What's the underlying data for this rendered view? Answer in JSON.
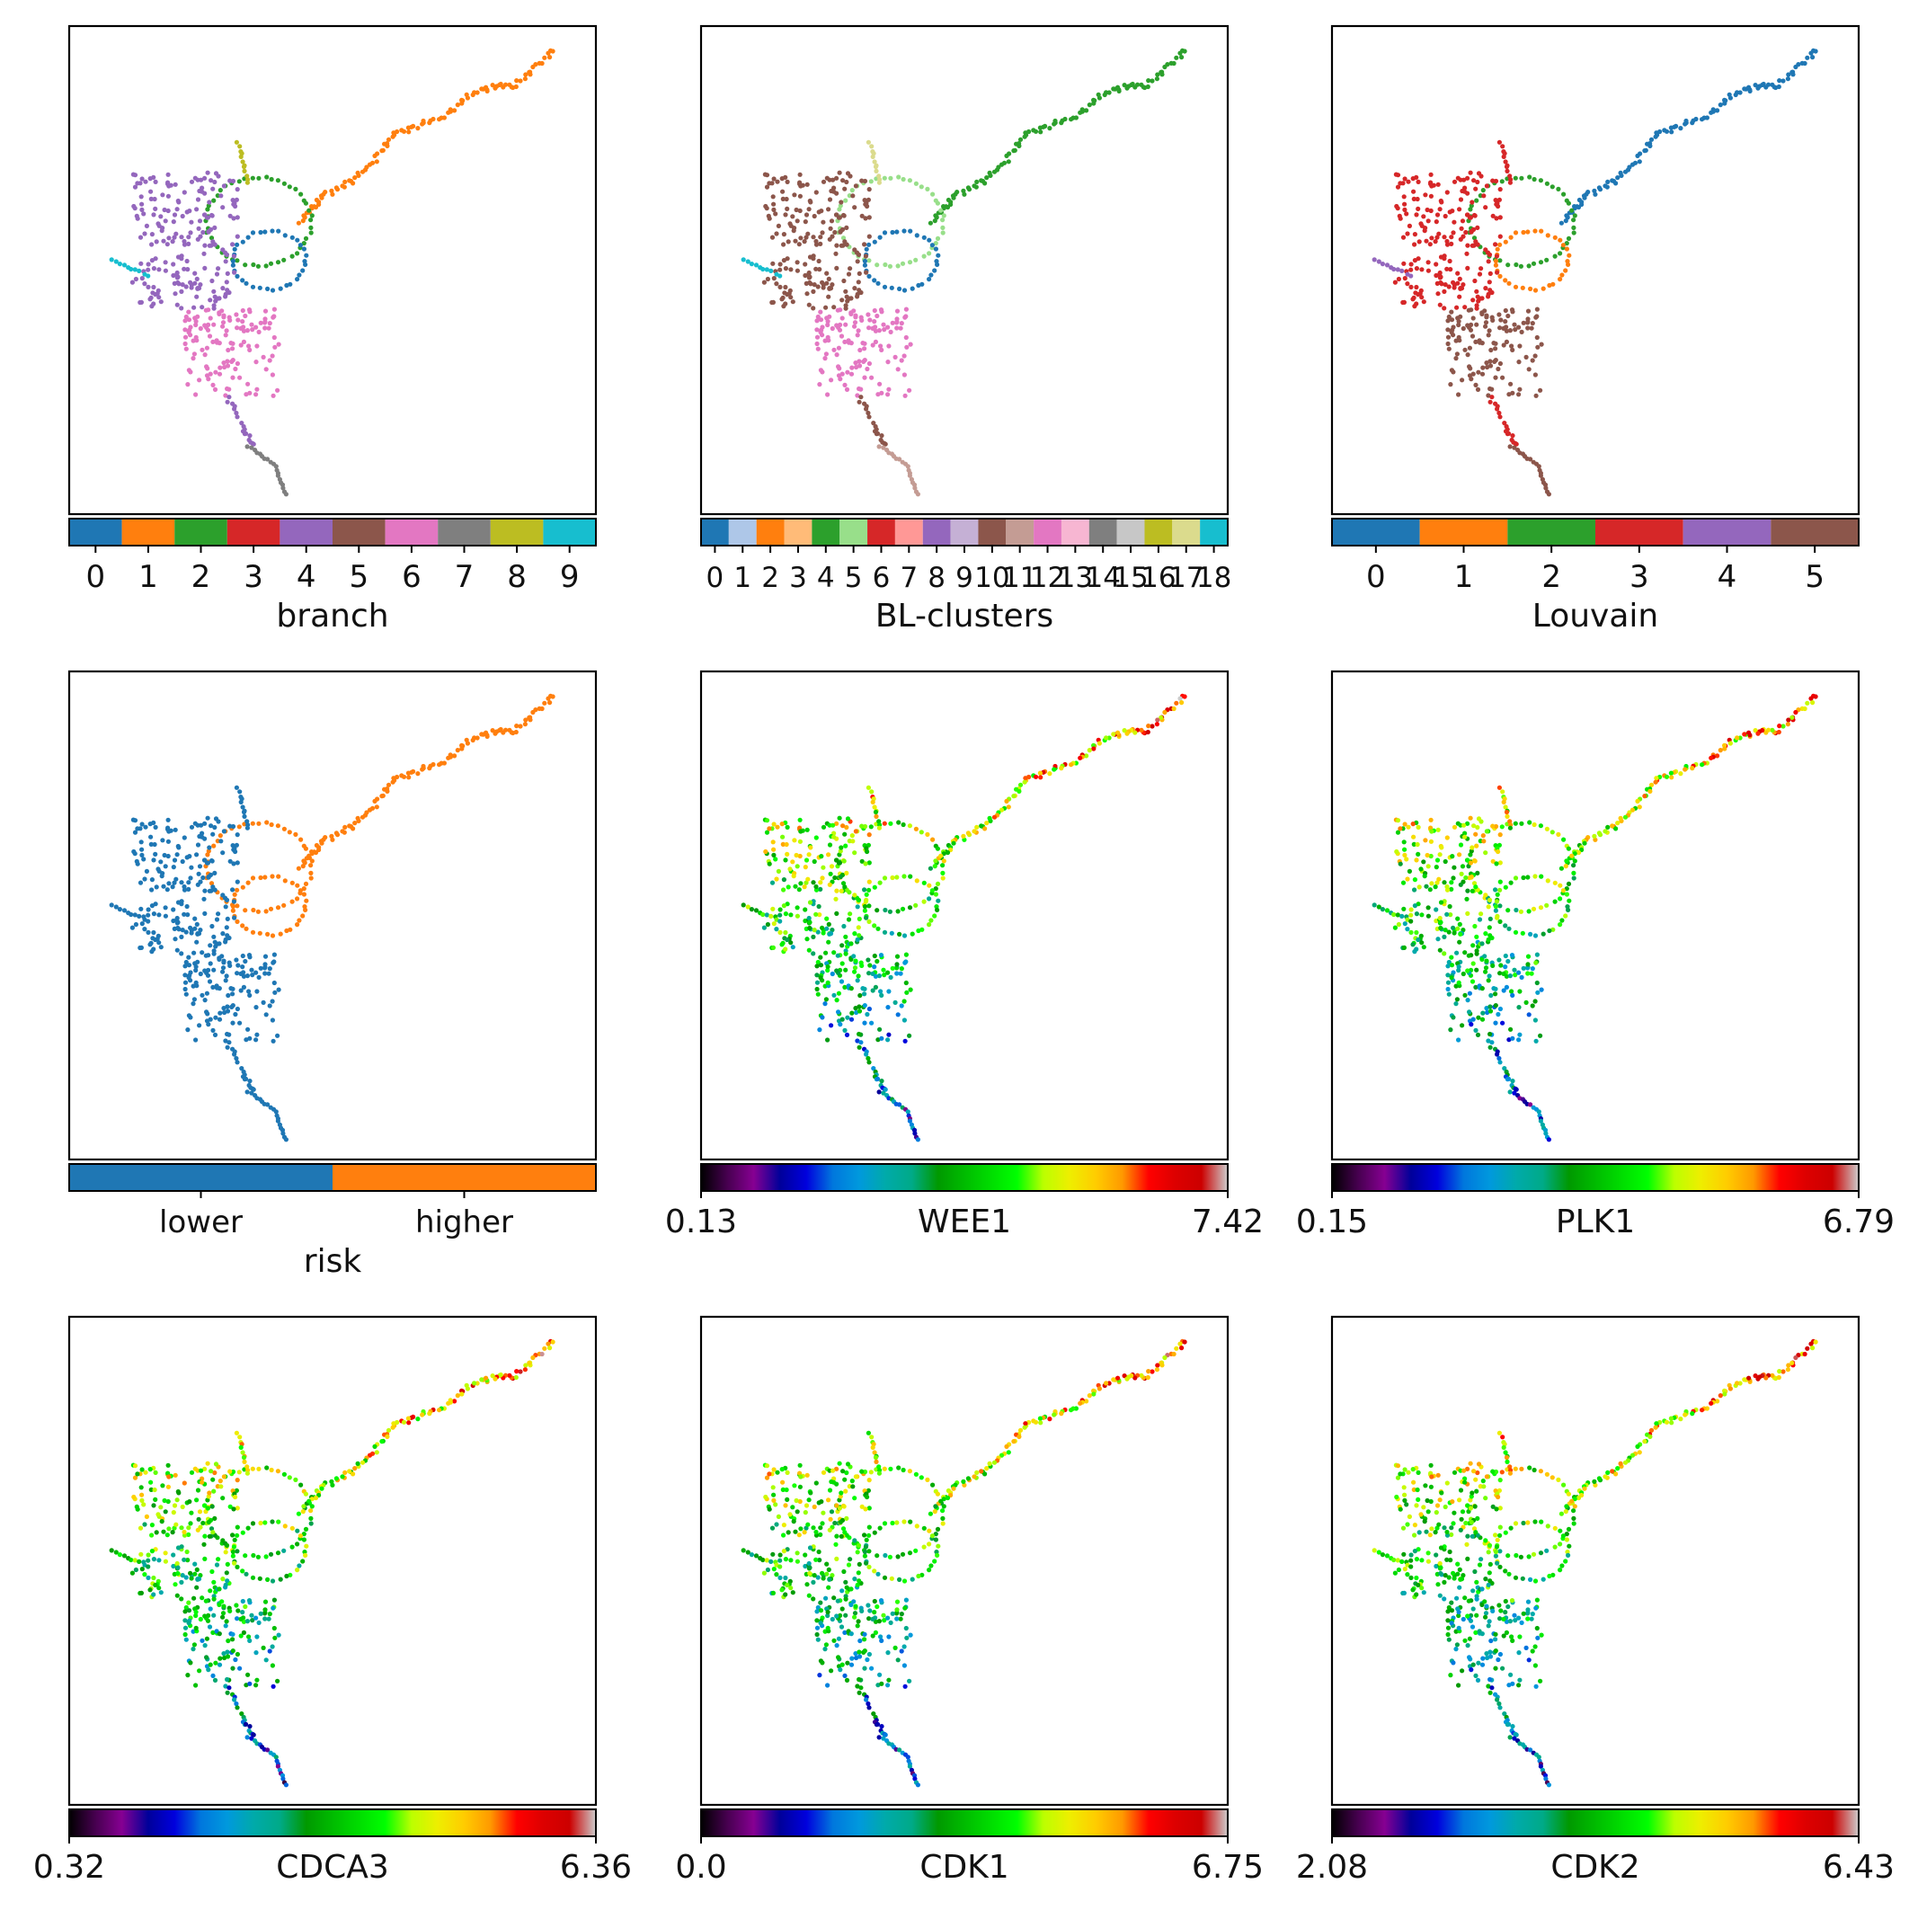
{
  "chart_data": [
    {
      "type": "scatter",
      "panel": "branch",
      "colorbar": {
        "kind": "categorical",
        "label": "branch",
        "ticks": [
          "0",
          "1",
          "2",
          "3",
          "4",
          "5",
          "6",
          "7",
          "8",
          "9"
        ],
        "colors": [
          "#1f77b4",
          "#ff7f0e",
          "#2ca02c",
          "#d62728",
          "#9467bd",
          "#8c564b",
          "#e377c2",
          "#7f7f7f",
          "#bcbd22",
          "#17becf"
        ]
      }
    },
    {
      "type": "scatter",
      "panel": "BL-clusters",
      "colorbar": {
        "kind": "categorical",
        "label": "BL-clusters",
        "ticks": [
          "0",
          "1",
          "2",
          "3",
          "4",
          "5",
          "6",
          "7",
          "8",
          "9",
          "10",
          "11",
          "12",
          "13",
          "14",
          "15",
          "16",
          "17",
          "18"
        ],
        "colors": [
          "#1f77b4",
          "#aec7e8",
          "#ff7f0e",
          "#ffbb78",
          "#2ca02c",
          "#98df8a",
          "#d62728",
          "#ff9896",
          "#9467bd",
          "#c5b0d5",
          "#8c564b",
          "#c49c94",
          "#e377c2",
          "#f7b6d2",
          "#7f7f7f",
          "#c7c7c7",
          "#bcbd22",
          "#dbdb8d",
          "#17becf"
        ]
      }
    },
    {
      "type": "scatter",
      "panel": "Louvain",
      "colorbar": {
        "kind": "categorical",
        "label": "Louvain",
        "ticks": [
          "0",
          "1",
          "2",
          "3",
          "4",
          "5"
        ],
        "colors": [
          "#1f77b4",
          "#ff7f0e",
          "#2ca02c",
          "#d62728",
          "#9467bd",
          "#8c564b"
        ]
      }
    },
    {
      "type": "scatter",
      "panel": "risk",
      "colorbar": {
        "kind": "categorical",
        "label": "risk",
        "ticks": [
          "lower",
          "higher"
        ],
        "colors": [
          "#1f77b4",
          "#ff7f0e"
        ]
      }
    },
    {
      "type": "scatter",
      "panel": "WEE1",
      "colorbar": {
        "kind": "continuous",
        "label": "WEE1",
        "min": "0.13",
        "max": "7.42",
        "vmin": 0.13,
        "vmax": 7.42,
        "cmap": "nipy_spectral"
      }
    },
    {
      "type": "scatter",
      "panel": "PLK1",
      "colorbar": {
        "kind": "continuous",
        "label": "PLK1",
        "min": "0.15",
        "max": "6.79",
        "vmin": 0.15,
        "vmax": 6.79,
        "cmap": "nipy_spectral"
      }
    },
    {
      "type": "scatter",
      "panel": "CDCA3",
      "colorbar": {
        "kind": "continuous",
        "label": "CDCA3",
        "min": "0.32",
        "max": "6.36",
        "vmin": 0.32,
        "vmax": 6.36,
        "cmap": "nipy_spectral"
      }
    },
    {
      "type": "scatter",
      "panel": "CDK1",
      "colorbar": {
        "kind": "continuous",
        "label": "CDK1",
        "min": "0.0",
        "max": "6.75",
        "vmin": 0.0,
        "vmax": 6.75,
        "cmap": "nipy_spectral"
      }
    },
    {
      "type": "scatter",
      "panel": "CDK2",
      "colorbar": {
        "kind": "continuous",
        "label": "CDK2",
        "min": "2.08",
        "max": "6.43",
        "vmin": 2.08,
        "vmax": 6.43,
        "cmap": "nipy_spectral"
      }
    }
  ]
}
